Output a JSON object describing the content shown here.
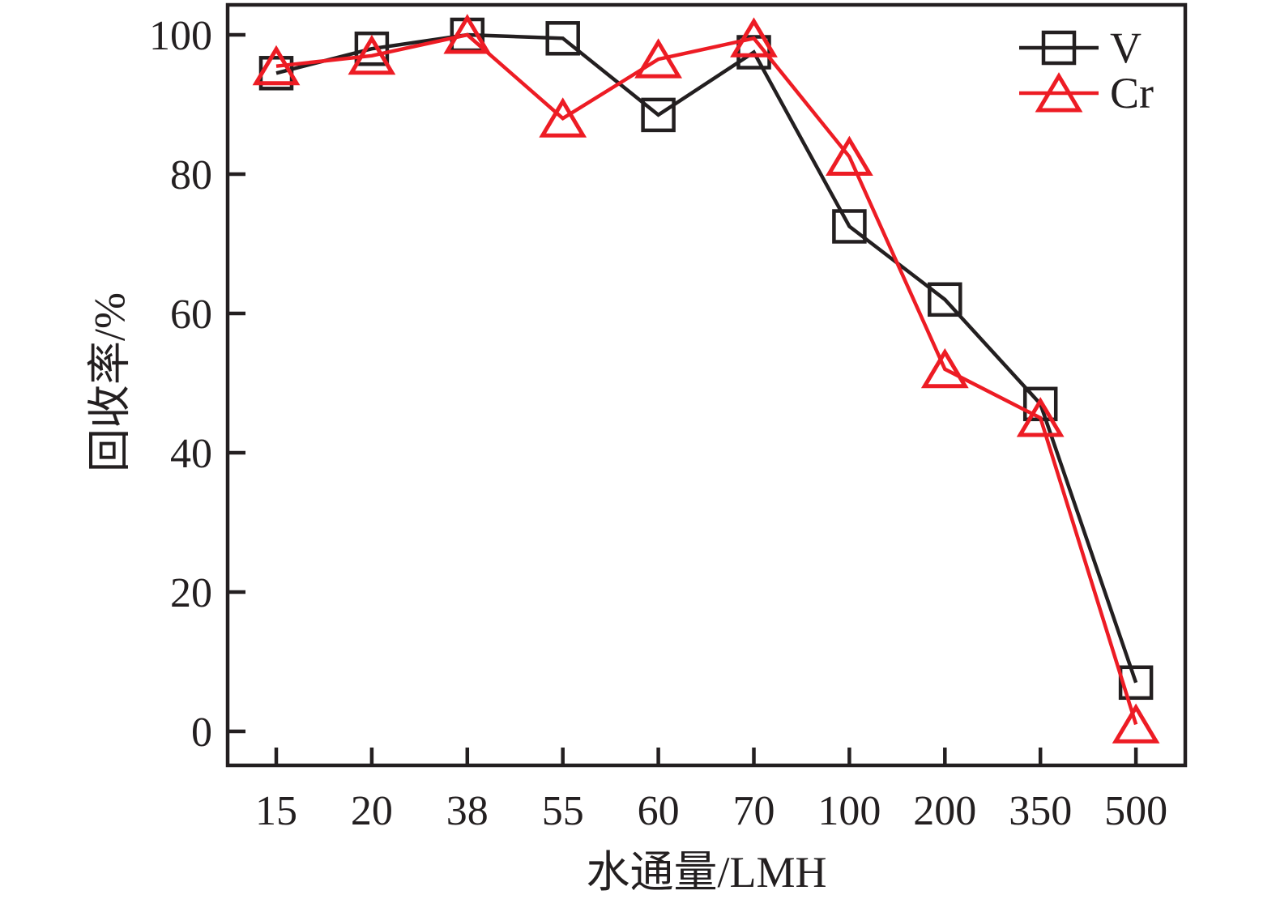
{
  "chart_data": {
    "type": "line",
    "title": "",
    "xlabel": "水通量/LMH",
    "ylabel": "回收率/%",
    "categories": [
      "15",
      "20",
      "38",
      "55",
      "60",
      "70",
      "100",
      "200",
      "350",
      "500"
    ],
    "yticks": [
      0,
      20,
      40,
      60,
      80,
      100
    ],
    "ylim": [
      -5,
      105
    ],
    "grid": false,
    "legend_position": "top-right",
    "frame": "full-box",
    "colors": {
      "v_series": "#231f20",
      "cr_series": "#ed1c24",
      "axis": "#231f20"
    },
    "series": [
      {
        "name": "V",
        "marker": "square",
        "color": "#231f20",
        "values": [
          94.5,
          98,
          100,
          99.5,
          88.5,
          97.5,
          72.5,
          62,
          47,
          7
        ]
      },
      {
        "name": "Cr",
        "marker": "triangle",
        "color": "#ed1c24",
        "values": [
          95.5,
          97,
          100,
          88,
          96.5,
          99.5,
          82.5,
          52,
          45,
          1
        ]
      }
    ]
  }
}
